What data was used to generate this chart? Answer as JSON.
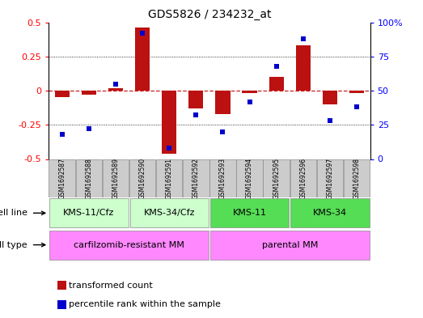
{
  "title": "GDS5826 / 234232_at",
  "samples": [
    "GSM1692587",
    "GSM1692588",
    "GSM1692589",
    "GSM1692590",
    "GSM1692591",
    "GSM1692592",
    "GSM1692593",
    "GSM1692594",
    "GSM1692595",
    "GSM1692596",
    "GSM1692597",
    "GSM1692598"
  ],
  "transformed_count": [
    -0.05,
    -0.03,
    0.02,
    0.46,
    -0.46,
    -0.13,
    -0.17,
    -0.02,
    0.1,
    0.33,
    -0.1,
    -0.02
  ],
  "percentile_rank": [
    18,
    22,
    55,
    92,
    8,
    32,
    20,
    42,
    68,
    88,
    28,
    38
  ],
  "cell_line_groups": [
    {
      "label": "KMS-11/Cfz",
      "start": 0,
      "end": 2,
      "color": "#ccffcc"
    },
    {
      "label": "KMS-34/Cfz",
      "start": 3,
      "end": 5,
      "color": "#ccffcc"
    },
    {
      "label": "KMS-11",
      "start": 6,
      "end": 8,
      "color": "#55dd55"
    },
    {
      "label": "KMS-34",
      "start": 9,
      "end": 11,
      "color": "#55dd55"
    }
  ],
  "cell_type_groups": [
    {
      "label": "carfilzomib-resistant MM",
      "start": 0,
      "end": 5,
      "color": "#ff88ff"
    },
    {
      "label": "parental MM",
      "start": 6,
      "end": 11,
      "color": "#ff88ff"
    }
  ],
  "bar_color": "#bb1111",
  "dot_color": "#0000cc",
  "ylim_left": [
    -0.5,
    0.5
  ],
  "ylim_right": [
    0,
    100
  ],
  "yticks_left": [
    -0.5,
    -0.25,
    0,
    0.25,
    0.5
  ],
  "yticks_right": [
    0,
    25,
    50,
    75,
    100
  ],
  "ytick_labels_left": [
    "-0.5",
    "-0.25",
    "0",
    "0.25",
    "0.5"
  ],
  "ytick_labels_right": [
    "0",
    "25",
    "50",
    "75",
    "100%"
  ],
  "hlines": [
    -0.25,
    0.25
  ],
  "zero_line_color": "#cc2222",
  "sample_box_color": "#cccccc",
  "legend_tc": "transformed count",
  "legend_pr": "percentile rank within the sample",
  "cell_line_label": "cell line",
  "cell_type_label": "cell type"
}
